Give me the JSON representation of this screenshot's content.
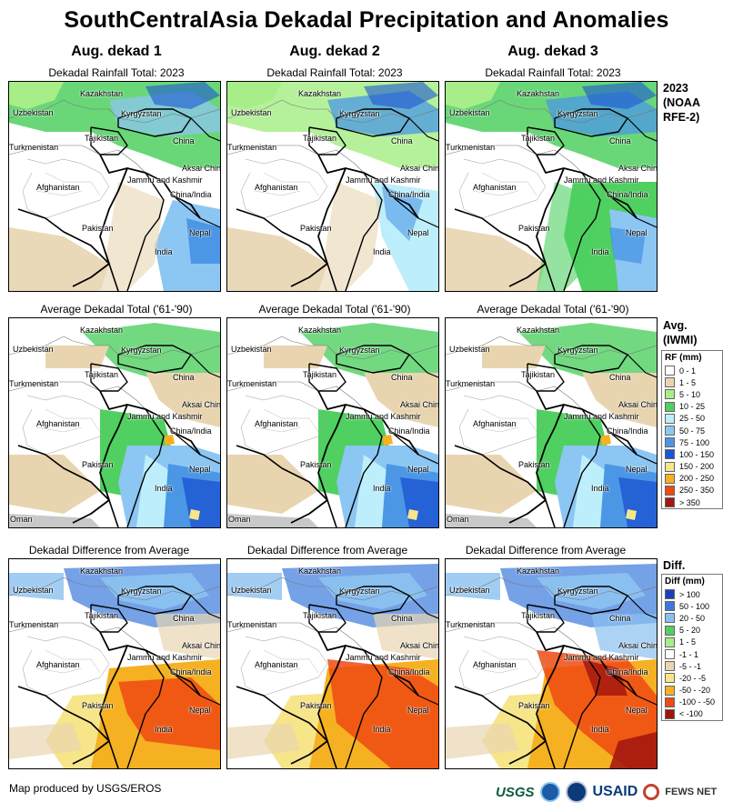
{
  "title": "SouthCentralAsia Dekadal Precipitation and Anomalies",
  "columns": [
    {
      "heading": "Aug. dekad 1"
    },
    {
      "heading": "Aug. dekad 2"
    },
    {
      "heading": "Aug. dekad 3"
    }
  ],
  "rows": [
    {
      "subtitle": "Dekadal Rainfall Total: 2023",
      "side_title": [
        "2023",
        "(NOAA",
        "RFE-2)"
      ]
    },
    {
      "subtitle": "Average Dekadal Total ('61-'90)",
      "side_title": [
        "Avg.",
        "(IWMI)"
      ]
    },
    {
      "subtitle": "Dekadal Difference from Average",
      "side_title": [
        "Diff."
      ]
    }
  ],
  "map_labels": [
    "Kazakhstan",
    "Uzbekistan",
    "Kyrgyzstan",
    "Tajikistan",
    "China",
    "Turkmenistan",
    "Aksai Chin",
    "Jammu and Kashmir",
    "China/India",
    "Afghanistan",
    "Pakistan",
    "Nepal",
    "India"
  ],
  "oman_label": "Oman",
  "rainfall_legend": {
    "title": "RF (mm)",
    "items": [
      {
        "label": "0 - 1",
        "color": "#ffffff"
      },
      {
        "label": "1 - 5",
        "color": "#e8d5b0"
      },
      {
        "label": "5 - 10",
        "color": "#a8ee88"
      },
      {
        "label": "10 - 25",
        "color": "#4fd060"
      },
      {
        "label": "25 - 50",
        "color": "#bdeefc"
      },
      {
        "label": "50 - 75",
        "color": "#8cc6f2"
      },
      {
        "label": "75 - 100",
        "color": "#4b97e6"
      },
      {
        "label": "100 - 150",
        "color": "#1c55d2"
      },
      {
        "label": "150 - 200",
        "color": "#f7e58a"
      },
      {
        "label": "200 - 250",
        "color": "#f5b122"
      },
      {
        "label": "250 - 350",
        "color": "#ee4a12"
      },
      {
        "label": "> 350",
        "color": "#9c1a10"
      }
    ]
  },
  "diff_legend": {
    "title": "Diff (mm)",
    "items": [
      {
        "label": "> 100",
        "color": "#1c3fb8"
      },
      {
        "label": "50 - 100",
        "color": "#3a79dc"
      },
      {
        "label": "20 - 50",
        "color": "#89c0f0"
      },
      {
        "label": "5 - 20",
        "color": "#4fd060"
      },
      {
        "label": "1 - 5",
        "color": "#a8ee88"
      },
      {
        "label": "-1 - 1",
        "color": "#ffffff"
      },
      {
        "label": "-5 - -1",
        "color": "#e8d5b0"
      },
      {
        "label": "-20 - -5",
        "color": "#f7e58a"
      },
      {
        "label": "-50 - -20",
        "color": "#f5b122"
      },
      {
        "label": "-100 - -50",
        "color": "#ee4a12"
      },
      {
        "label": "< -100",
        "color": "#a0140e"
      }
    ]
  },
  "footer": "Map produced by USGS/EROS",
  "logos": {
    "usgs": "USGS",
    "usaid": "USAID",
    "fews": "FEWS NET"
  }
}
